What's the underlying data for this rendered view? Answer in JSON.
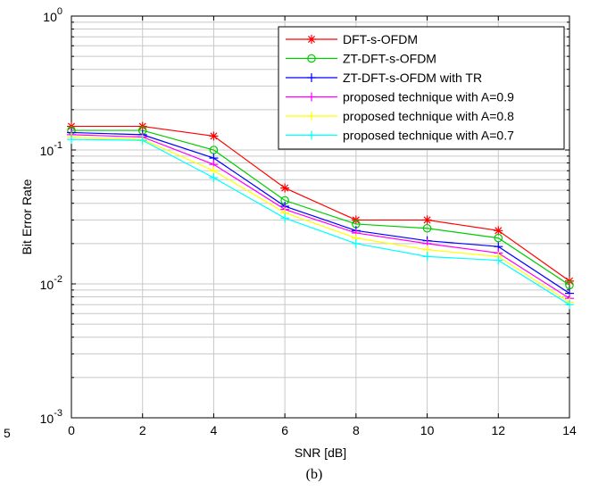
{
  "chart_data": {
    "type": "line",
    "xlabel": "SNR [dB]",
    "ylabel": "Bit Error Rate",
    "xlim": [
      0,
      14
    ],
    "ylim": [
      0.001,
      1
    ],
    "y_scale": "log",
    "x_ticks": [
      0,
      2,
      4,
      6,
      8,
      10,
      12,
      14
    ],
    "y_ticks": [
      {
        "value": 1,
        "base": "10",
        "exp": "0"
      },
      {
        "value": 0.1,
        "base": "10",
        "exp": "-1"
      },
      {
        "value": 0.01,
        "base": "10",
        "exp": "-2"
      },
      {
        "value": 0.001,
        "base": "10",
        "exp": "-3"
      }
    ],
    "grid": true,
    "legend_position": "top-right",
    "x": [
      0,
      2,
      4,
      6,
      8,
      10,
      12,
      14
    ],
    "series": [
      {
        "name": "DFT-s-OFDM",
        "color": "#ff0000",
        "marker": "asterisk",
        "values": [
          0.15,
          0.15,
          0.127,
          0.052,
          0.03,
          0.03,
          0.025,
          0.0105
        ]
      },
      {
        "name": "ZT-DFT-s-OFDM",
        "color": "#00cc00",
        "marker": "circle",
        "values": [
          0.14,
          0.14,
          0.1,
          0.042,
          0.028,
          0.026,
          0.022,
          0.0098
        ]
      },
      {
        "name": "ZT-DFT-s-OFDM with TR",
        "color": "#0000ff",
        "marker": "plus",
        "values": [
          0.135,
          0.13,
          0.087,
          0.038,
          0.025,
          0.021,
          0.019,
          0.0085
        ]
      },
      {
        "name": "proposed technique with A=0.9",
        "color": "#ff00ff",
        "marker": "plus",
        "values": [
          0.13,
          0.125,
          0.078,
          0.036,
          0.024,
          0.02,
          0.017,
          0.0078
        ]
      },
      {
        "name": "proposed technique with A=0.8",
        "color": "#ffff00",
        "marker": "plus",
        "values": [
          0.125,
          0.12,
          0.07,
          0.034,
          0.022,
          0.018,
          0.016,
          0.0073
        ]
      },
      {
        "name": "proposed technique with A=0.7",
        "color": "#00ffff",
        "marker": "plus",
        "values": [
          0.12,
          0.118,
          0.062,
          0.031,
          0.02,
          0.016,
          0.015,
          0.007
        ]
      }
    ]
  },
  "side_label": "5",
  "caption": "(b)"
}
